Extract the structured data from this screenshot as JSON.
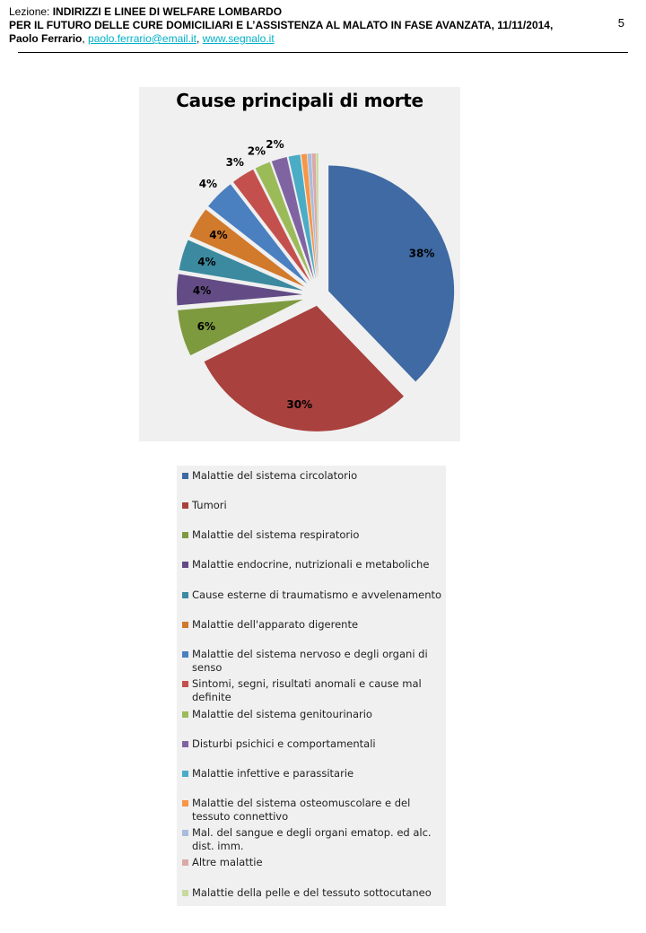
{
  "header": {
    "lezione_label": "Lezione: ",
    "title": "INDIRIZZI E LINEE DI WELFARE LOMBARDO",
    "subtitle": "PER IL FUTURO DELLE CURE DOMICILIARI E L’ASSISTENZA AL MALATO IN FASE AVANZATA, 11/11/2014,",
    "author": "Paolo Ferrario",
    "sep1": ", ",
    "email": "paolo.ferrario@email.it",
    "sep2": ", ",
    "website": "www.segnalo.it",
    "page_number": "5"
  },
  "chart_data": {
    "type": "pie",
    "title": "Cause principali di morte",
    "legend_position": "bottom",
    "categories": [
      "Malattie del sistema circolatorio",
      "Tumori",
      "Malattie del sistema respiratorio",
      "Malattie endocrine, nutrizionali e metaboliche",
      "Cause esterne di traumatismo e avvelenamento",
      "Malattie dell'apparato digerente",
      "Malattie del sistema nervoso e degli organi di senso",
      "Sintomi, segni, risultati anomali e cause mal definite",
      "Malattie del sistema genitourinario",
      "Disturbi psichici e comportamentali",
      "Malattie infettive e parassitarie",
      "Malattie del sistema osteomuscolare e del tessuto connettivo",
      "Mal. del sangue e degli organi ematop. ed alc. dist. imm.",
      "Altre malattie",
      "Malattie della pelle e del tessuto sottocutaneo"
    ],
    "values": [
      38,
      30,
      6,
      4,
      4,
      4,
      4,
      3,
      2,
      2,
      1.5,
      0.7,
      0.5,
      0.5,
      0.3
    ],
    "data_labels": [
      "38%",
      "30%",
      "6%",
      "4%",
      "4%",
      "4%",
      "4%",
      "3%",
      "2%",
      "2%",
      "",
      "",
      "",
      "",
      ""
    ],
    "colors": [
      "#3f6aa3",
      "#a9413e",
      "#7d9a3e",
      "#634c85",
      "#3b8aa0",
      "#d17a2c",
      "#4a7fc0",
      "#c4504d",
      "#9bbb59",
      "#8064a2",
      "#4bacc6",
      "#f79646",
      "#a9bcdc",
      "#dba9a8",
      "#c8da9f"
    ]
  }
}
